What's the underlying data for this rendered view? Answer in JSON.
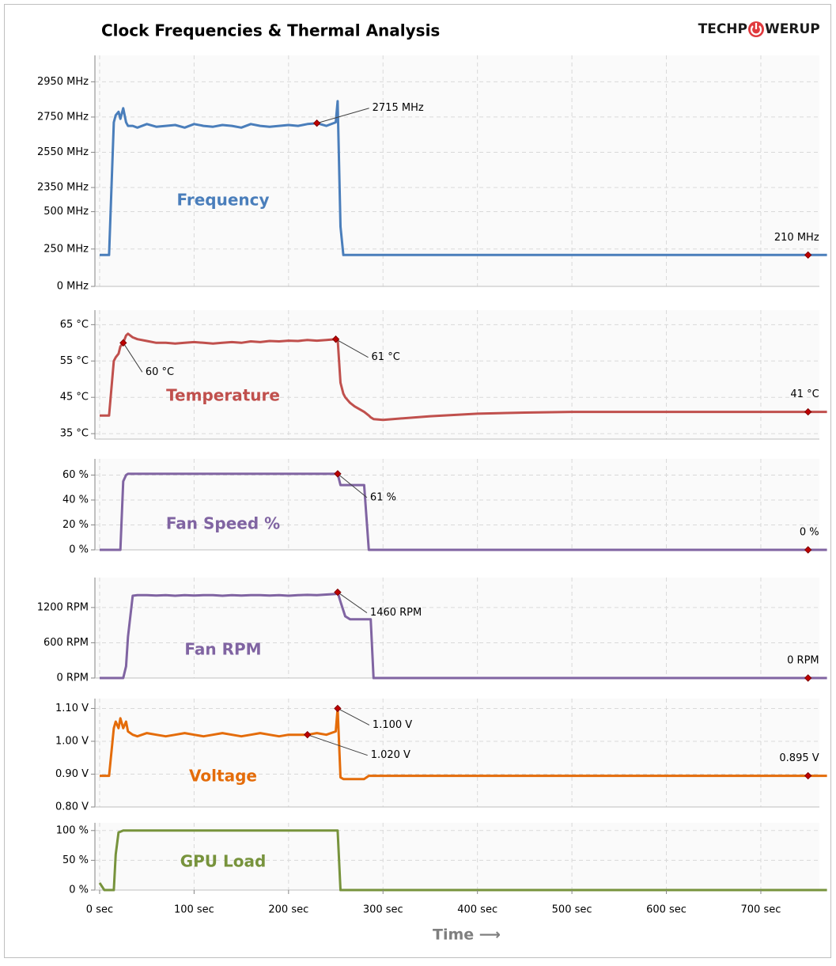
{
  "logo": {
    "left": "TECHP",
    "right": "WERUP"
  },
  "chart_data": [
    {
      "type": "line",
      "title": "Clock Frequencies & Thermal Analysis",
      "x": [
        0,
        5,
        10,
        15,
        17,
        20,
        22,
        25,
        28,
        30,
        35,
        40,
        50,
        60,
        70,
        80,
        90,
        100,
        110,
        120,
        130,
        140,
        150,
        160,
        170,
        180,
        190,
        200,
        210,
        220,
        230,
        240,
        250,
        252,
        255,
        258,
        260,
        265,
        270,
        280,
        285,
        287,
        290,
        300,
        350,
        400,
        450,
        500,
        550,
        600,
        650,
        700,
        750,
        770
      ],
      "xlim": [
        -5,
        762
      ],
      "ylim": [
        0,
        3100
      ],
      "ybreak": [
        540,
        2350
      ],
      "yticks": [
        {
          "value": 0,
          "label": "0 MHz"
        },
        {
          "value": 250,
          "label": "250 MHz"
        },
        {
          "value": 500,
          "label": "500 MHz"
        },
        {
          "value": 2350,
          "label": "2350 MHz"
        },
        {
          "value": 2550,
          "label": "2550 MHz"
        },
        {
          "value": 2750,
          "label": "2750 MHz"
        },
        {
          "value": 2950,
          "label": "2950 MHz"
        }
      ],
      "grid": true,
      "series": [
        {
          "name": "Frequency",
          "color": "#4a7ebb",
          "values": [
            210,
            210,
            210,
            2720,
            2760,
            2780,
            2740,
            2800,
            2720,
            2700,
            2700,
            2690,
            2710,
            2695,
            2700,
            2705,
            2690,
            2710,
            2700,
            2695,
            2705,
            2700,
            2690,
            2710,
            2700,
            2695,
            2700,
            2705,
            2700,
            2710,
            2715,
            2700,
            2720,
            2840,
            400,
            210,
            210,
            210,
            210,
            210,
            210,
            210,
            210,
            210,
            210,
            210,
            210,
            210,
            210,
            210,
            210,
            210,
            210,
            210
          ]
        }
      ],
      "annotations": [
        {
          "x": 230,
          "y": 2715,
          "label": "2715 MHz"
        },
        {
          "x": 750,
          "y": 210,
          "label": "210 MHz"
        }
      ]
    },
    {
      "type": "line",
      "x": [
        0,
        5,
        10,
        15,
        17,
        20,
        22,
        25,
        28,
        30,
        35,
        40,
        50,
        60,
        70,
        80,
        90,
        100,
        110,
        120,
        130,
        140,
        150,
        160,
        170,
        180,
        190,
        200,
        210,
        220,
        230,
        240,
        250,
        252,
        255,
        258,
        260,
        265,
        270,
        280,
        285,
        287,
        290,
        300,
        350,
        400,
        450,
        500,
        550,
        600,
        650,
        700,
        750,
        770
      ],
      "xlim": [
        -5,
        762
      ],
      "ylim": [
        33.5,
        69
      ],
      "yticks": [
        {
          "value": 35,
          "label": "35 °C"
        },
        {
          "value": 45,
          "label": "45 °C"
        },
        {
          "value": 55,
          "label": "55 °C"
        },
        {
          "value": 65,
          "label": "65 °C"
        }
      ],
      "grid": true,
      "series": [
        {
          "name": "Temperature",
          "color": "#c0504d",
          "values": [
            40,
            40,
            40,
            55,
            56,
            57,
            59,
            60,
            62,
            62.5,
            61.5,
            61,
            60.5,
            60,
            60,
            59.8,
            60,
            60.2,
            60,
            59.8,
            60,
            60.2,
            60,
            60.4,
            60.2,
            60.5,
            60.4,
            60.6,
            60.5,
            60.8,
            60.6,
            60.8,
            61,
            61,
            49,
            46,
            45,
            43.5,
            42.5,
            41,
            40,
            39.5,
            39,
            38.8,
            39.8,
            40.5,
            40.8,
            41,
            41,
            41,
            41,
            41,
            41,
            41
          ]
        }
      ],
      "annotations": [
        {
          "x": 25,
          "y": 60,
          "label": "60 °C"
        },
        {
          "x": 250,
          "y": 61,
          "label": "61 °C"
        },
        {
          "x": 750,
          "y": 41,
          "label": "41 °C"
        }
      ]
    },
    {
      "type": "line",
      "x": [
        0,
        5,
        10,
        15,
        17,
        20,
        22,
        25,
        28,
        30,
        35,
        40,
        50,
        60,
        70,
        80,
        90,
        100,
        110,
        120,
        130,
        140,
        150,
        160,
        170,
        180,
        190,
        200,
        210,
        220,
        230,
        240,
        250,
        252,
        255,
        258,
        260,
        265,
        270,
        280,
        285,
        287,
        290,
        300,
        350,
        400,
        450,
        500,
        550,
        600,
        650,
        700,
        750,
        770
      ],
      "xlim": [
        -5,
        762
      ],
      "ylim": [
        0,
        73
      ],
      "yticks": [
        {
          "value": 0,
          "label": "0 %"
        },
        {
          "value": 20,
          "label": "20 %"
        },
        {
          "value": 40,
          "label": "40 %"
        },
        {
          "value": 60,
          "label": "60 %"
        }
      ],
      "grid": true,
      "series": [
        {
          "name": "Fan Speed %",
          "color": "#8064a2",
          "values": [
            0,
            0,
            0,
            0,
            0,
            0,
            0,
            55,
            60,
            61,
            61,
            61,
            61,
            61,
            61,
            61,
            61,
            61,
            61,
            61,
            61,
            61,
            61,
            61,
            61,
            61,
            61,
            61,
            61,
            61,
            61,
            61,
            61,
            61,
            52,
            52,
            52,
            52,
            52,
            52,
            0,
            0,
            0,
            0,
            0,
            0,
            0,
            0,
            0,
            0,
            0,
            0,
            0,
            0
          ]
        }
      ],
      "annotations": [
        {
          "x": 252,
          "y": 61,
          "label": "61 %"
        },
        {
          "x": 750,
          "y": 0,
          "label": "0 %"
        }
      ]
    },
    {
      "type": "line",
      "x": [
        0,
        5,
        10,
        15,
        17,
        20,
        22,
        25,
        28,
        30,
        35,
        40,
        50,
        60,
        70,
        80,
        90,
        100,
        110,
        120,
        130,
        140,
        150,
        160,
        170,
        180,
        190,
        200,
        210,
        220,
        230,
        240,
        250,
        252,
        255,
        258,
        260,
        265,
        270,
        280,
        285,
        287,
        290,
        300,
        350,
        400,
        450,
        500,
        550,
        600,
        650,
        700,
        750,
        770
      ],
      "xlim": [
        -5,
        762
      ],
      "ylim": [
        0,
        1710
      ],
      "yticks": [
        {
          "value": 0,
          "label": "0 RPM"
        },
        {
          "value": 600,
          "label": "600 RPM"
        },
        {
          "value": 1200,
          "label": "1200 RPM"
        }
      ],
      "grid": true,
      "series": [
        {
          "name": "Fan RPM",
          "color": "#8064a2",
          "values": [
            0,
            0,
            0,
            0,
            0,
            0,
            0,
            0,
            200,
            700,
            1400,
            1410,
            1410,
            1405,
            1410,
            1400,
            1410,
            1405,
            1410,
            1410,
            1400,
            1410,
            1405,
            1410,
            1410,
            1405,
            1410,
            1400,
            1410,
            1415,
            1410,
            1420,
            1430,
            1460,
            1300,
            1150,
            1050,
            1000,
            1000,
            1000,
            1000,
            1000,
            0,
            0,
            0,
            0,
            0,
            0,
            0,
            0,
            0,
            0,
            0,
            0
          ]
        }
      ],
      "annotations": [
        {
          "x": 252,
          "y": 1460,
          "label": "1460 RPM"
        },
        {
          "x": 750,
          "y": 0,
          "label": "0 RPM"
        }
      ]
    },
    {
      "type": "line",
      "x": [
        0,
        5,
        10,
        15,
        17,
        20,
        22,
        25,
        28,
        30,
        35,
        40,
        50,
        60,
        70,
        80,
        90,
        100,
        110,
        120,
        130,
        140,
        150,
        160,
        170,
        180,
        190,
        200,
        210,
        220,
        230,
        240,
        250,
        252,
        255,
        258,
        260,
        265,
        270,
        280,
        285,
        287,
        290,
        300,
        350,
        400,
        450,
        500,
        550,
        600,
        650,
        700,
        750,
        770
      ],
      "xlim": [
        -5,
        762
      ],
      "ylim": [
        0.8,
        1.13
      ],
      "yticks": [
        {
          "value": 0.8,
          "label": "0.80 V"
        },
        {
          "value": 0.9,
          "label": "0.90 V"
        },
        {
          "value": 1.0,
          "label": "1.00 V"
        },
        {
          "value": 1.1,
          "label": "1.10 V"
        }
      ],
      "grid": true,
      "series": [
        {
          "name": "Voltage",
          "color": "#e46c0a",
          "values": [
            0.895,
            0.895,
            0.895,
            1.04,
            1.06,
            1.04,
            1.07,
            1.04,
            1.06,
            1.03,
            1.02,
            1.015,
            1.025,
            1.02,
            1.015,
            1.02,
            1.025,
            1.02,
            1.015,
            1.02,
            1.025,
            1.02,
            1.015,
            1.02,
            1.025,
            1.02,
            1.015,
            1.02,
            1.02,
            1.02,
            1.025,
            1.02,
            1.03,
            1.1,
            0.89,
            0.885,
            0.885,
            0.885,
            0.885,
            0.885,
            0.895,
            0.895,
            0.895,
            0.895,
            0.895,
            0.895,
            0.895,
            0.895,
            0.895,
            0.895,
            0.895,
            0.895,
            0.895,
            0.895
          ]
        }
      ],
      "annotations": [
        {
          "x": 220,
          "y": 1.02,
          "label": "1.020 V"
        },
        {
          "x": 252,
          "y": 1.1,
          "label": "1.100 V"
        },
        {
          "x": 750,
          "y": 0.895,
          "label": "0.895 V"
        }
      ]
    },
    {
      "type": "line",
      "x": [
        0,
        5,
        10,
        15,
        17,
        20,
        22,
        25,
        28,
        30,
        35,
        40,
        50,
        60,
        70,
        80,
        90,
        100,
        110,
        120,
        130,
        140,
        150,
        160,
        170,
        180,
        190,
        200,
        210,
        220,
        230,
        240,
        250,
        252,
        255,
        258,
        260,
        265,
        270,
        280,
        285,
        287,
        290,
        300,
        350,
        400,
        450,
        500,
        550,
        600,
        650,
        700,
        750,
        770
      ],
      "xlim": [
        -5,
        762
      ],
      "ylim": [
        0,
        113
      ],
      "yticks": [
        {
          "value": 0,
          "label": "0 %"
        },
        {
          "value": 50,
          "label": "50 %"
        },
        {
          "value": 100,
          "label": "100 %"
        }
      ],
      "xticks": [
        {
          "value": 0,
          "label": "0 sec"
        },
        {
          "value": 100,
          "label": "100 sec"
        },
        {
          "value": 200,
          "label": "200 sec"
        },
        {
          "value": 300,
          "label": "300 sec"
        },
        {
          "value": 400,
          "label": "400 sec"
        },
        {
          "value": 500,
          "label": "500 sec"
        },
        {
          "value": 600,
          "label": "600 sec"
        },
        {
          "value": 700,
          "label": "700 sec"
        }
      ],
      "xlabel": "Time ⟶",
      "grid": true,
      "series": [
        {
          "name": "GPU Load",
          "color": "#77933c",
          "values": [
            12,
            0,
            0,
            0,
            60,
            97,
            98,
            100,
            100,
            100,
            100,
            100,
            100,
            100,
            100,
            100,
            100,
            100,
            100,
            100,
            100,
            100,
            100,
            100,
            100,
            100,
            100,
            100,
            100,
            100,
            100,
            100,
            100,
            100,
            0,
            0,
            0,
            0,
            0,
            0,
            0,
            0,
            0,
            0,
            0,
            0,
            0,
            0,
            0,
            0,
            0,
            0,
            0,
            0
          ]
        }
      ],
      "annotations": []
    }
  ]
}
